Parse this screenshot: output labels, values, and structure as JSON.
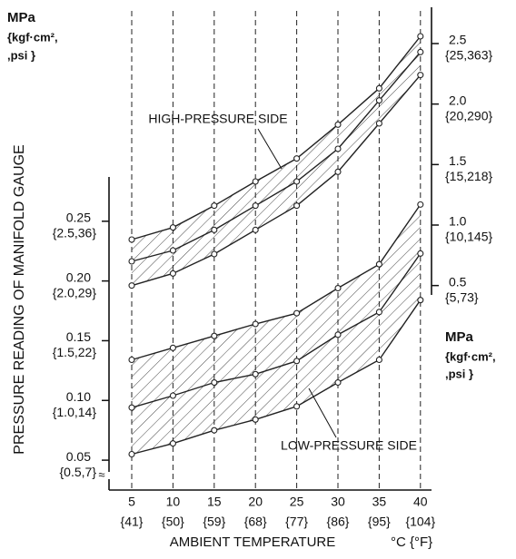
{
  "chart_data": {
    "type": "line",
    "y_label": "PRESSURE READING OF MANIFOLD GAUGE",
    "x_label": "AMBIENT TEMPERATURE",
    "x_unit": "°C {°F}",
    "y_unit": [
      "MPa",
      "{kgf·cm²,",
      ",psi }"
    ],
    "y2_unit": [
      "MPa",
      "{kgf·cm²,",
      ",psi }"
    ],
    "categories": [
      "5",
      "10",
      "15",
      "20",
      "25",
      "30",
      "35",
      "40"
    ],
    "category_sublabels": [
      "{41}",
      "{50}",
      "{59}",
      "{68}",
      "{77}",
      "{86}",
      "{95}",
      "{104}"
    ],
    "ylim": [
      0.025,
      0.42
    ],
    "yticks": [
      0.05,
      {
        "value": 0.1,
        "label": "0.10"
      },
      0.15,
      {
        "value": 0.2,
        "label": "0.20"
      },
      0.25
    ],
    "ytick_sublabels": [
      "{0.5,7}",
      "{1.0,14}",
      "{1.5,22}",
      "{2.0,29}",
      "{2.5,36}"
    ],
    "y2lim": [
      -1.19,
      2.71
    ],
    "y2ticks": [
      0.5,
      {
        "value": 1,
        "label": "1.0"
      },
      1.5,
      {
        "value": 2,
        "label": "2.0"
      },
      2.5
    ],
    "y2tick_sublabels": [
      "{5,73}",
      "{10,145}",
      "{15,218}",
      "{20,290}",
      "{25,363}"
    ],
    "annotations": [
      "HIGH-PRESSURE SIDE",
      "LOW-PRESSURE SIDE"
    ],
    "series": [
      {
        "color": "#222222",
        "axis": "y2",
        "values": [
          0.88,
          0.98,
          1.16,
          1.36,
          1.55,
          1.83,
          2.13,
          2.56
        ]
      },
      {
        "color": "#222222",
        "axis": "y2",
        "values": [
          0.7,
          0.79,
          0.96,
          1.16,
          1.36,
          1.63,
          2.03,
          2.43
        ]
      },
      {
        "color": "#222222",
        "axis": "y2",
        "values": [
          0.5,
          0.6,
          0.76,
          0.96,
          1.16,
          1.44,
          1.84,
          2.24
        ]
      },
      {
        "color": "#222222",
        "values": [
          0.134,
          0.144,
          0.154,
          0.164,
          0.173,
          0.194,
          0.214,
          0.264
        ]
      },
      {
        "color": "#222222",
        "values": [
          0.094,
          0.104,
          0.115,
          0.122,
          0.133,
          0.155,
          0.174,
          0.223
        ]
      },
      {
        "color": "#222222",
        "values": [
          0.055,
          0.064,
          0.075,
          0.084,
          0.095,
          0.115,
          0.134,
          0.184
        ]
      }
    ]
  }
}
